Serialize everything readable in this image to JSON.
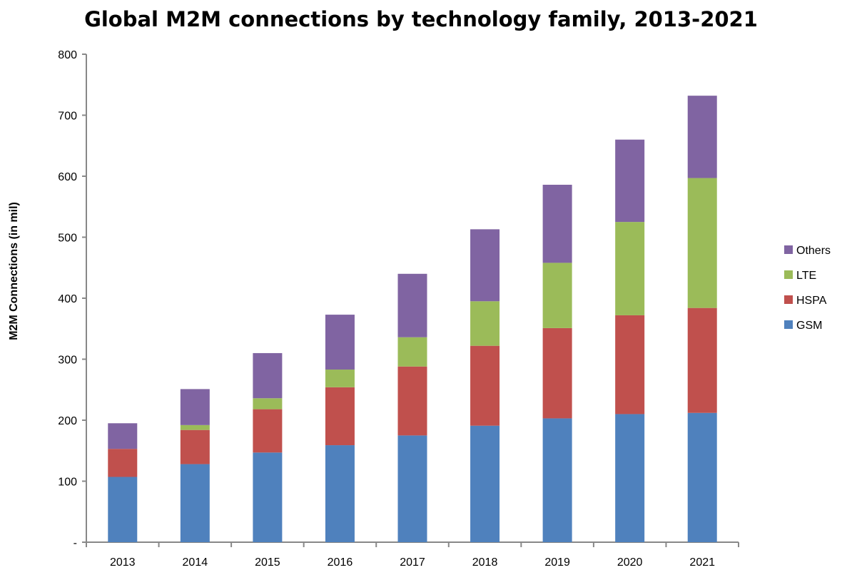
{
  "chart_data": {
    "type": "bar",
    "stacked": true,
    "title": "Global M2M connections by technology family, 2013-2021",
    "xlabel": "",
    "ylabel": "M2M Connections (in mil)",
    "ylim": [
      0,
      800
    ],
    "yticks": [
      "-",
      "100",
      "200",
      "300",
      "400",
      "500",
      "600",
      "700",
      "800"
    ],
    "grid": false,
    "legend_position": "right",
    "categories": [
      "2013",
      "2014",
      "2015",
      "2016",
      "2017",
      "2018",
      "2019",
      "2020",
      "2021"
    ],
    "series": [
      {
        "name": "GSM",
        "color": "#4F81BD",
        "values": [
          107,
          128,
          147,
          159,
          175,
          191,
          203,
          210,
          212
        ]
      },
      {
        "name": "HSPA",
        "color": "#C0504D",
        "values": [
          46,
          56,
          71,
          95,
          113,
          131,
          148,
          162,
          172
        ]
      },
      {
        "name": "LTE",
        "color": "#9BBB59",
        "values": [
          0,
          8,
          18,
          29,
          48,
          73,
          107,
          153,
          213
        ]
      },
      {
        "name": "Others",
        "color": "#8064A2",
        "values": [
          42,
          59,
          74,
          90,
          104,
          118,
          128,
          135,
          135
        ]
      }
    ]
  }
}
